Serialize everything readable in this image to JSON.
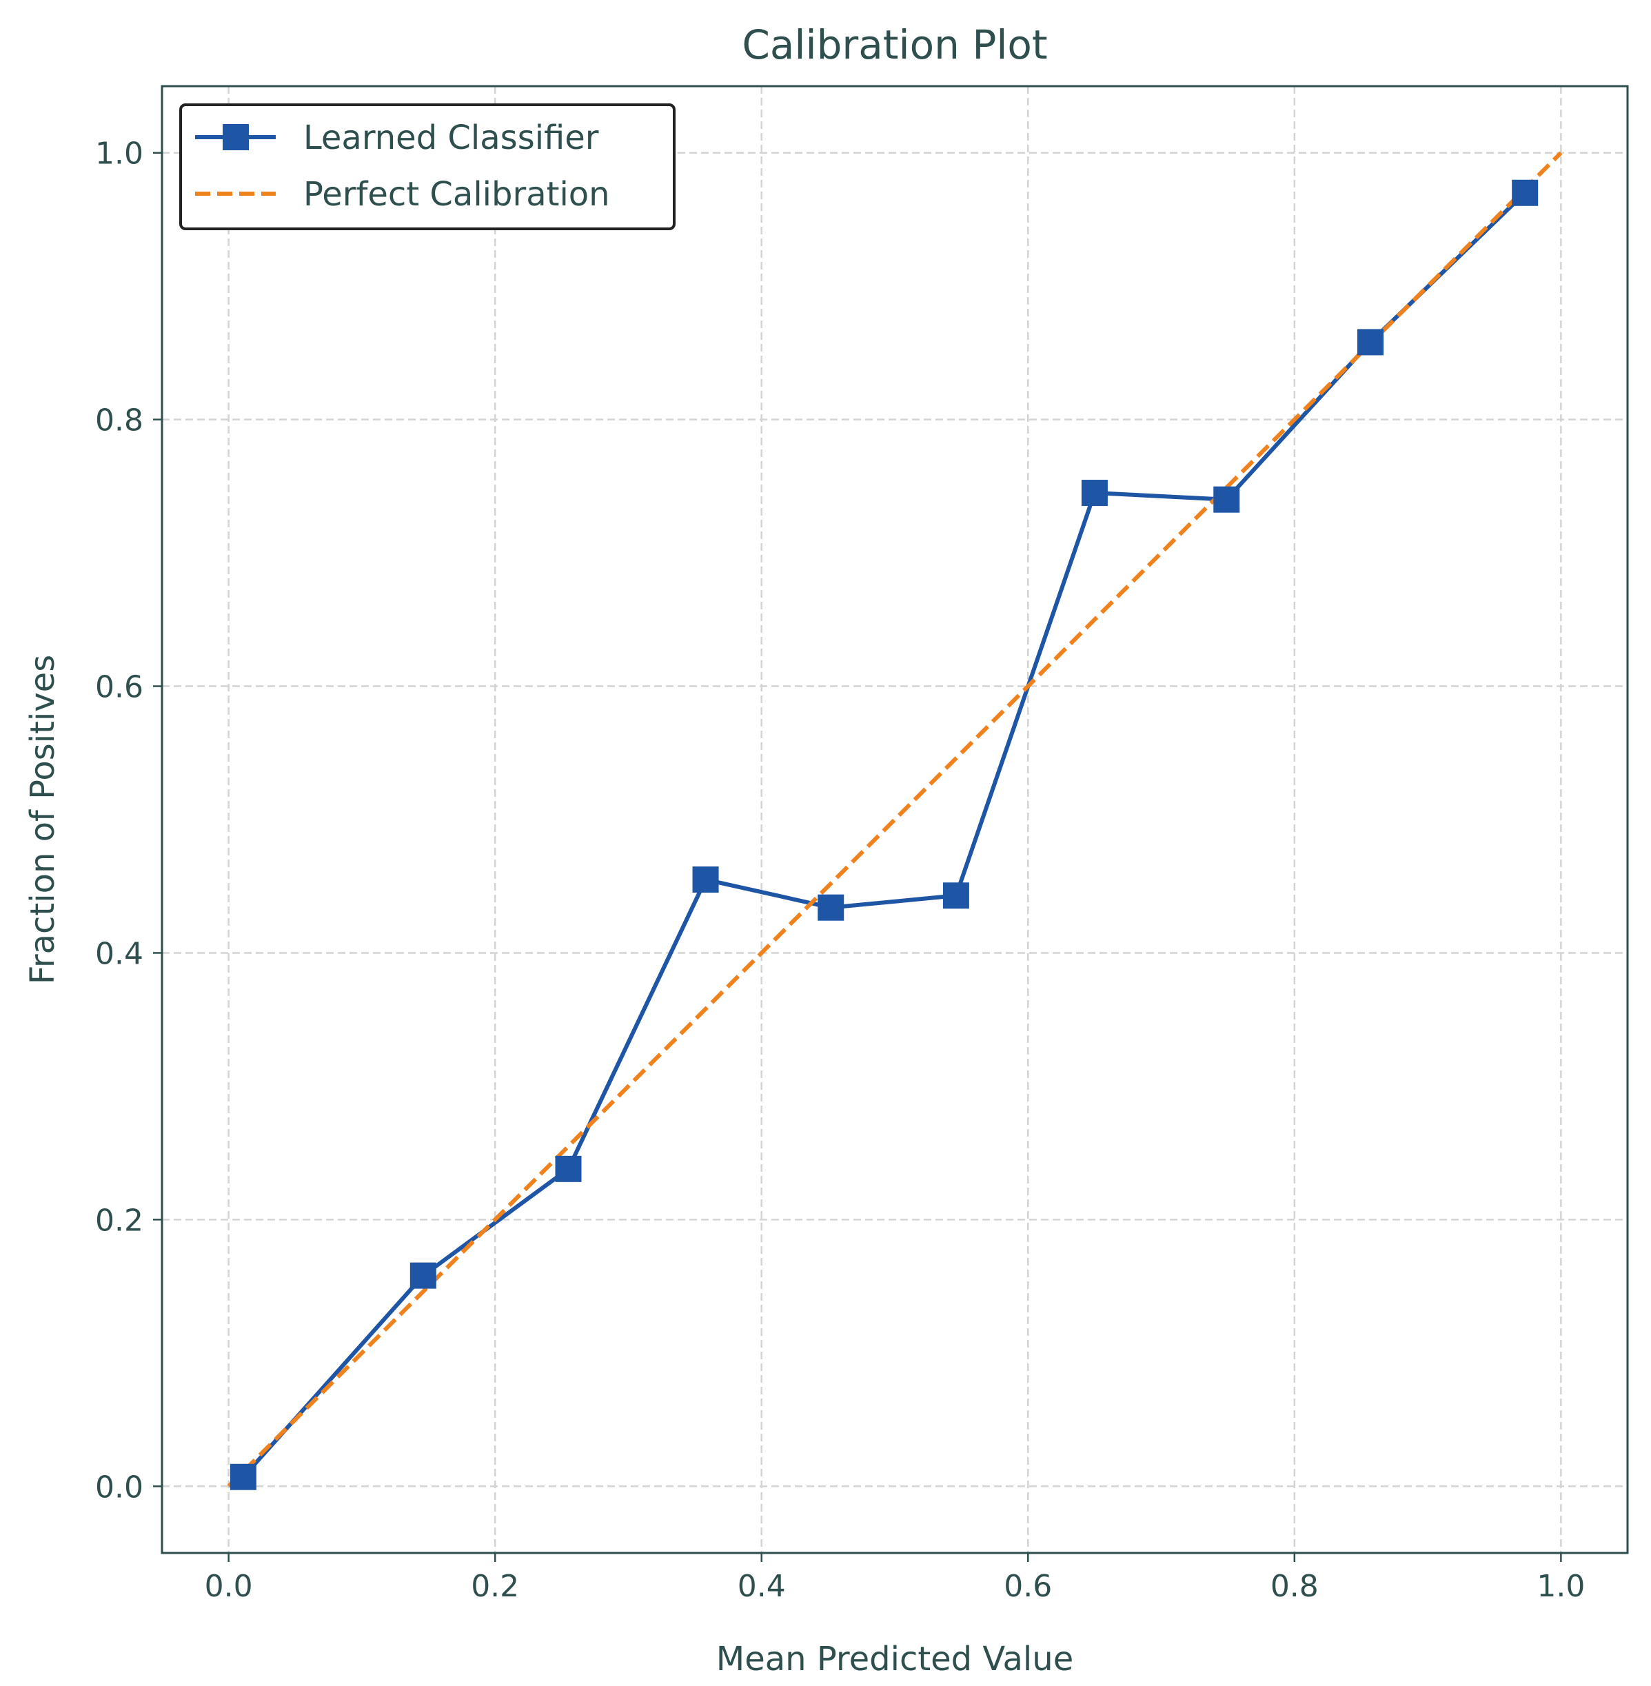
{
  "chart_data": {
    "type": "line",
    "title": "Calibration Plot",
    "xlabel": "Mean Predicted Value",
    "ylabel": "Fraction of Positives",
    "xlim": [
      -0.05,
      1.05
    ],
    "ylim": [
      -0.05,
      1.05
    ],
    "xticks": [
      "0.0",
      "0.2",
      "0.4",
      "0.6",
      "0.8",
      "1.0"
    ],
    "yticks": [
      "0.0",
      "0.2",
      "0.4",
      "0.6",
      "0.8",
      "1.0"
    ],
    "grid": true,
    "legend_position": "top-left",
    "series": [
      {
        "name": "Learned Classifier",
        "color": "#1f55a5",
        "marker": "square",
        "line_style": "solid",
        "x": [
          0.011,
          0.146,
          0.255,
          0.358,
          0.452,
          0.546,
          0.65,
          0.749,
          0.857,
          0.973
        ],
        "y": [
          0.007,
          0.158,
          0.238,
          0.455,
          0.434,
          0.443,
          0.745,
          0.74,
          0.858,
          0.97
        ]
      },
      {
        "name": "Perfect Calibration",
        "color": "#f0821e",
        "marker": "none",
        "line_style": "dashed",
        "x": [
          0,
          1
        ],
        "y": [
          0,
          1
        ]
      }
    ]
  }
}
